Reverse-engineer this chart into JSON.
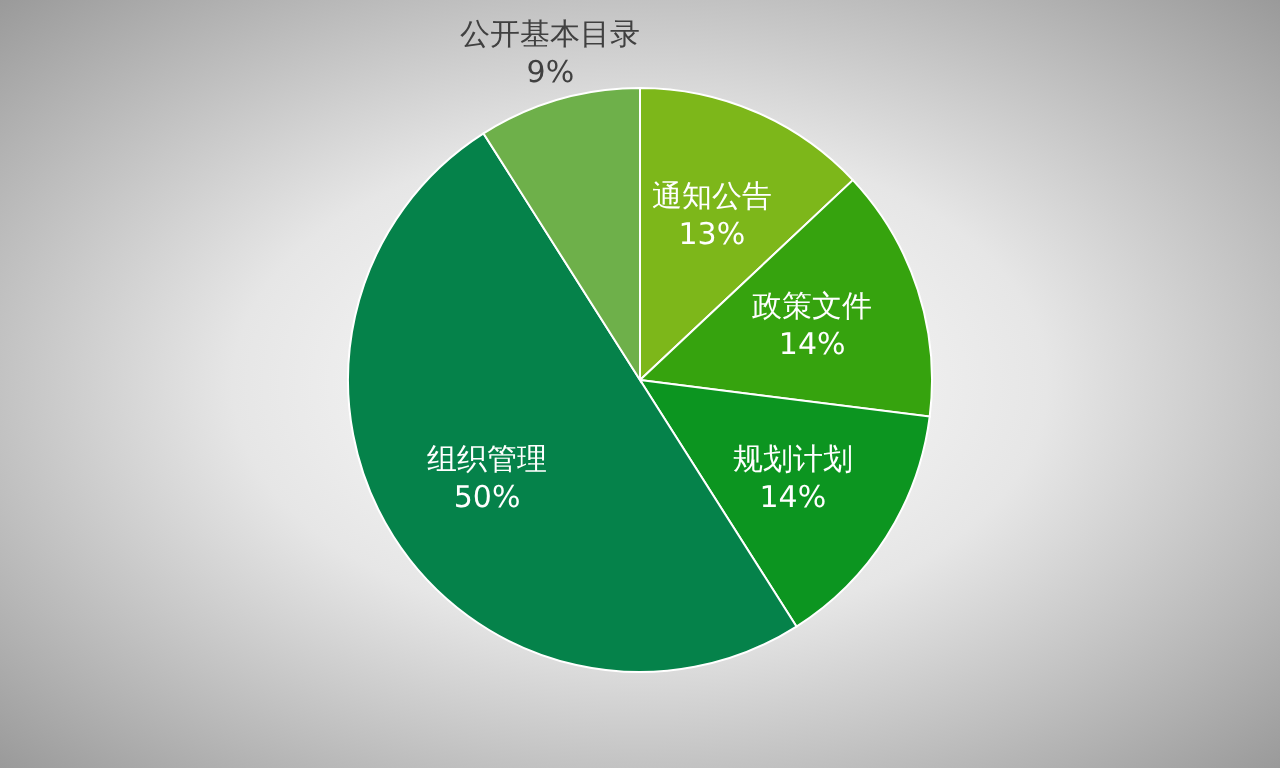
{
  "chart_data": {
    "type": "pie",
    "categories": [
      "通知公告",
      "政策文件",
      "规划计划",
      "组织管理",
      "公开基本目录"
    ],
    "values": [
      13,
      14,
      14,
      50,
      9
    ],
    "colors": [
      "#7db71a",
      "#36a30e",
      "#0c9520",
      "#05824a",
      "#6eb04a"
    ],
    "value_labels": [
      "13%",
      "14%",
      "14%",
      "50%",
      "9%"
    ]
  }
}
